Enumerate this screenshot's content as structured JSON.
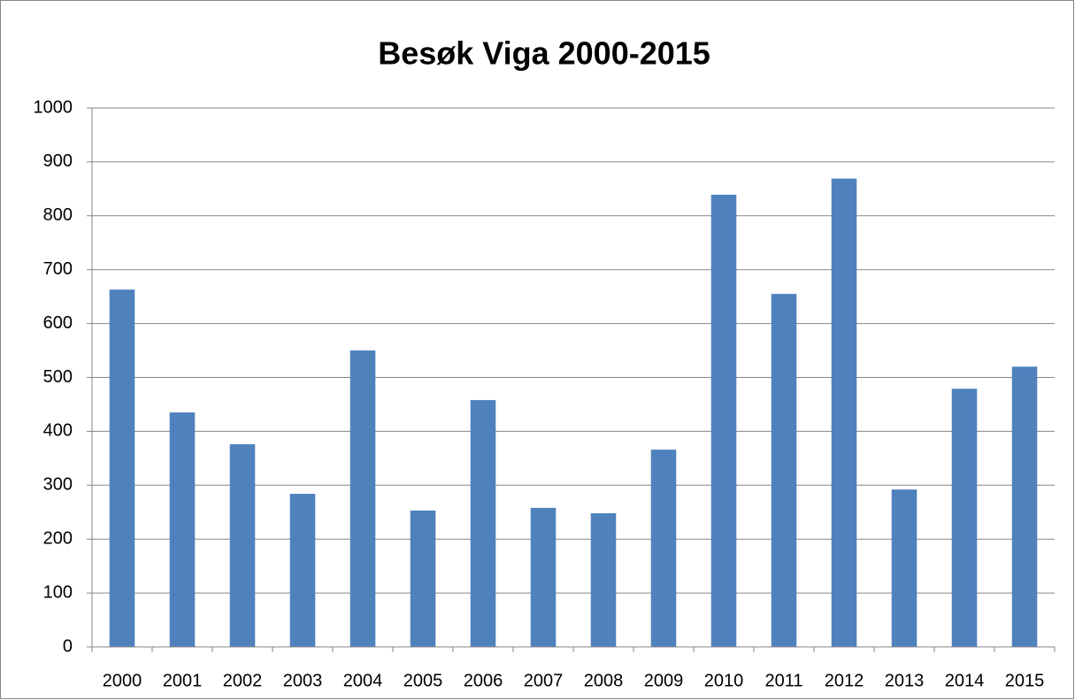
{
  "chart_data": {
    "type": "bar",
    "title": "Besøk Viga 2000-2015",
    "categories": [
      "2000",
      "2001",
      "2002",
      "2003",
      "2004",
      "2005",
      "2006",
      "2007",
      "2008",
      "2009",
      "2010",
      "2011",
      "2012",
      "2013",
      "2014",
      "2015"
    ],
    "values": [
      663,
      435,
      376,
      284,
      550,
      253,
      458,
      258,
      248,
      366,
      839,
      655,
      869,
      292,
      479,
      520
    ],
    "color": "#4f81bd",
    "ylim": [
      0,
      1000
    ],
    "yticks": [
      0,
      100,
      200,
      300,
      400,
      500,
      600,
      700,
      800,
      900,
      1000
    ],
    "grid": true
  }
}
